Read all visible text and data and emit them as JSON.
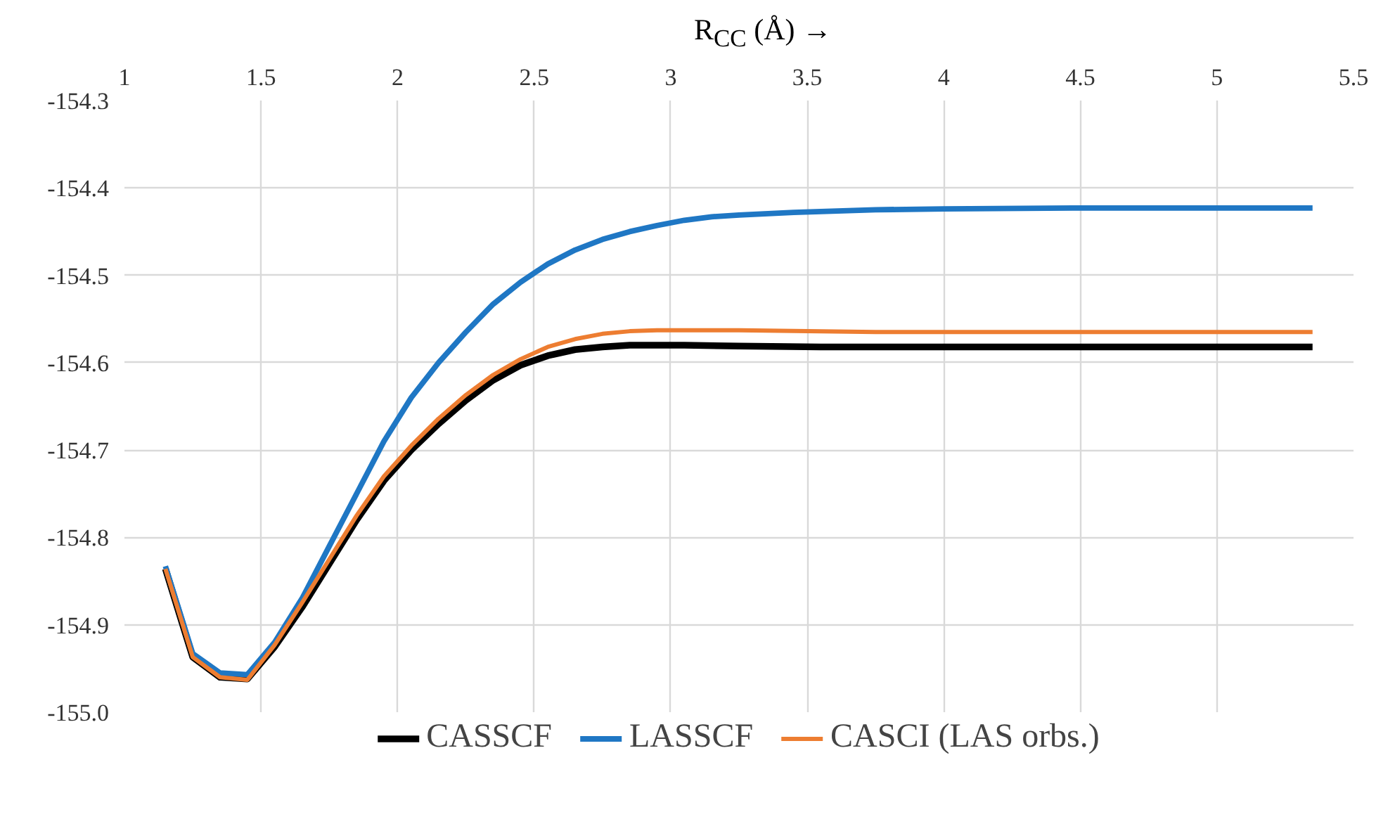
{
  "chart_data": {
    "type": "line",
    "xlabel": "R$_{CC}$ (Å) →",
    "xlim": [
      1,
      5.5
    ],
    "xticks": [
      1,
      1.5,
      2,
      2.5,
      3,
      3.5,
      4,
      4.5,
      5,
      5.5
    ],
    "ylim": [
      -155.0,
      -154.3
    ],
    "yticks": [
      -154.3,
      -154.4,
      -154.5,
      -154.6,
      -154.7,
      -154.8,
      -154.9,
      {
        "value": -155.0,
        "label": "-155.0"
      }
    ],
    "grid": true,
    "legend": "bottom",
    "marker": "none",
    "line_style": "solid",
    "series": [
      {
        "name": "CASSCF",
        "color": "#000000",
        "x": [
          1.15,
          1.25,
          1.35,
          1.45,
          1.55,
          1.65,
          1.75,
          1.85,
          1.95,
          2.05,
          2.15,
          2.25,
          2.35,
          2.45,
          2.55,
          2.65,
          2.75,
          2.85,
          3.05,
          3.25,
          3.55,
          4.0,
          4.5,
          5.0,
          5.35
        ],
        "values": [
          -154.836,
          -154.937,
          -154.96,
          -154.962,
          -154.925,
          -154.88,
          -154.83,
          -154.78,
          -154.735,
          -154.7,
          -154.67,
          -154.643,
          -154.62,
          -154.603,
          -154.592,
          -154.585,
          -154.582,
          -154.58,
          -154.58,
          -154.581,
          -154.582,
          -154.582,
          -154.582,
          -154.582,
          -154.582
        ]
      },
      {
        "name": "LASSCF",
        "color": "#1f77c4",
        "x": [
          1.15,
          1.25,
          1.35,
          1.45,
          1.55,
          1.65,
          1.75,
          1.85,
          1.95,
          2.05,
          2.15,
          2.25,
          2.35,
          2.45,
          2.55,
          2.65,
          2.75,
          2.85,
          2.95,
          3.05,
          3.15,
          3.25,
          3.45,
          3.75,
          4.0,
          4.5,
          5.0,
          5.35
        ],
        "values": [
          -154.833,
          -154.933,
          -154.955,
          -154.957,
          -154.92,
          -154.87,
          -154.81,
          -154.75,
          -154.69,
          -154.64,
          -154.6,
          -154.565,
          -154.533,
          -154.508,
          -154.487,
          -154.471,
          -154.459,
          -154.45,
          -154.443,
          -154.437,
          -154.433,
          -154.431,
          -154.428,
          -154.425,
          -154.424,
          -154.423,
          -154.423,
          -154.423
        ]
      },
      {
        "name": "CASCI (LAS orbs.)",
        "color": "#ed7d31",
        "x": [
          1.15,
          1.25,
          1.35,
          1.45,
          1.55,
          1.65,
          1.75,
          1.85,
          1.95,
          2.05,
          2.15,
          2.25,
          2.35,
          2.45,
          2.55,
          2.65,
          2.75,
          2.85,
          2.95,
          3.25,
          3.75,
          4.5,
          5.35
        ],
        "values": [
          -154.836,
          -154.937,
          -154.96,
          -154.963,
          -154.923,
          -154.875,
          -154.825,
          -154.775,
          -154.73,
          -154.695,
          -154.664,
          -154.637,
          -154.614,
          -154.596,
          -154.582,
          -154.573,
          -154.567,
          -154.564,
          -154.563,
          -154.563,
          -154.565,
          -154.565,
          -154.565
        ]
      }
    ]
  }
}
